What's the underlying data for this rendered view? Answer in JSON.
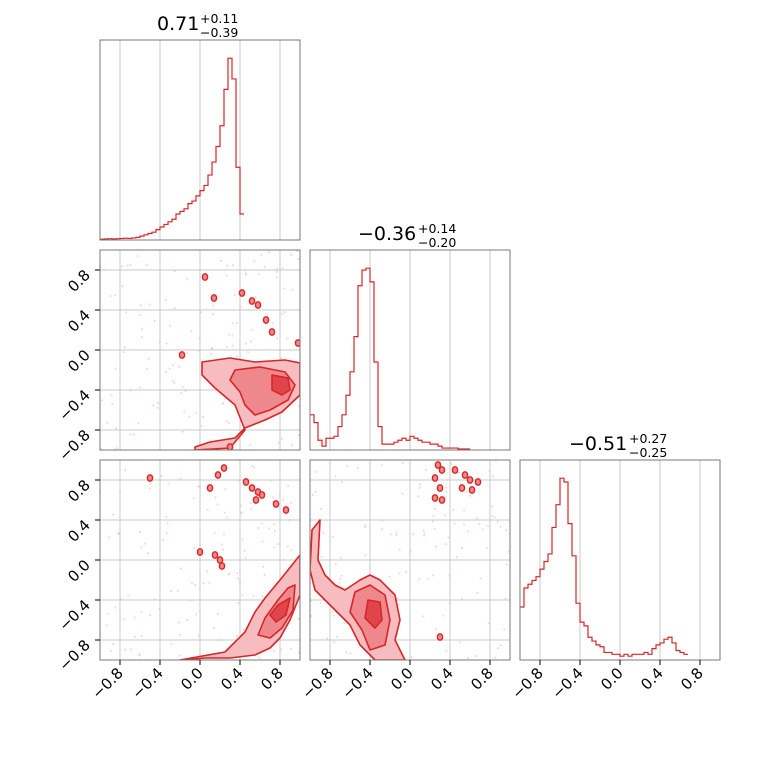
{
  "chart_data": {
    "type": "corner",
    "parameters": 3,
    "color": "#d62728",
    "fill_colors": [
      "#f6bcbf",
      "#ef888d",
      "#e0454c"
    ],
    "grid": true,
    "axis_range": [
      -1.0,
      1.0
    ],
    "tick_values": [
      -0.8,
      -0.4,
      0.0,
      0.4,
      0.8
    ],
    "tick_labels": [
      "−0.8",
      "−0.4",
      "0.0",
      "0.4",
      "0.8"
    ],
    "titles": [
      {
        "value": "0.71",
        "plus": "+0.11",
        "minus": "−0.39"
      },
      {
        "value": "−0.36",
        "plus": "+0.14",
        "minus": "−0.20"
      },
      {
        "value": "−0.51",
        "plus": "+0.27",
        "minus": "−0.25"
      }
    ],
    "histograms": [
      {
        "param": 1,
        "bin_start": -1.0,
        "bin_width": 0.04,
        "values": [
          0.3,
          0.4,
          0.5,
          0.4,
          0.5,
          0.6,
          0.7,
          0.6,
          0.8,
          1,
          1.5,
          2,
          2.5,
          3,
          4,
          5,
          6,
          7,
          8,
          10,
          11,
          12,
          14,
          15,
          17,
          19,
          21,
          25,
          30,
          36,
          44,
          58,
          70,
          62,
          28,
          10
        ]
      },
      {
        "param": 2,
        "bin_start": -1.0,
        "bin_width": 0.04,
        "values": [
          18,
          14,
          5,
          2,
          6,
          6,
          7,
          12,
          18,
          28,
          40,
          58,
          84,
          92,
          93,
          86,
          45,
          12,
          3,
          3,
          3,
          4,
          5,
          6,
          5,
          7,
          6,
          5,
          4,
          4,
          3,
          3,
          2,
          1,
          1,
          1,
          1,
          0.5,
          0.5,
          0.5
        ]
      },
      {
        "param": 3,
        "bin_start": -1.0,
        "bin_width": 0.04,
        "values": [
          28,
          38,
          40,
          42,
          44,
          48,
          52,
          56,
          70,
          82,
          96,
          94,
          72,
          55,
          30,
          20,
          18,
          12,
          10,
          8,
          7,
          4,
          4,
          3,
          3,
          2,
          3,
          2,
          3,
          3,
          3,
          4,
          3,
          6,
          8,
          9,
          11,
          12,
          9,
          5,
          4,
          3
        ]
      }
    ],
    "contours_2d": [
      {
        "x_param": 1,
        "y_param": 2,
        "levels": [
          {
            "level": 1,
            "points": [
              [
                0.02,
                -0.12
              ],
              [
                0.3,
                -0.08
              ],
              [
                0.55,
                -0.12
              ],
              [
                0.85,
                -0.1
              ],
              [
                1.0,
                -0.13
              ],
              [
                1.0,
                -0.45
              ],
              [
                0.82,
                -0.62
              ],
              [
                0.65,
                -0.7
              ],
              [
                0.45,
                -0.78
              ],
              [
                0.35,
                -0.88
              ],
              [
                0.1,
                -0.92
              ],
              [
                -0.05,
                -0.97
              ],
              [
                -0.05,
                -1.0
              ],
              [
                0.3,
                -0.98
              ],
              [
                0.45,
                -0.8
              ],
              [
                0.35,
                -0.55
              ],
              [
                0.15,
                -0.38
              ],
              [
                0.02,
                -0.25
              ]
            ]
          },
          {
            "level": 2,
            "points": [
              [
                0.35,
                -0.2
              ],
              [
                0.6,
                -0.17
              ],
              [
                0.85,
                -0.22
              ],
              [
                0.95,
                -0.35
              ],
              [
                0.88,
                -0.5
              ],
              [
                0.7,
                -0.6
              ],
              [
                0.55,
                -0.65
              ],
              [
                0.45,
                -0.55
              ],
              [
                0.4,
                -0.42
              ],
              [
                0.3,
                -0.3
              ]
            ]
          },
          {
            "level": 3,
            "points": [
              [
                0.72,
                -0.25
              ],
              [
                0.88,
                -0.28
              ],
              [
                0.9,
                -0.4
              ],
              [
                0.82,
                -0.45
              ],
              [
                0.72,
                -0.4
              ]
            ]
          }
        ],
        "islands": [
          [
            0.05,
            0.73
          ],
          [
            0.14,
            0.52
          ],
          [
            0.42,
            0.57
          ],
          [
            0.52,
            0.49
          ],
          [
            0.58,
            0.45
          ],
          [
            0.66,
            0.3
          ],
          [
            0.72,
            0.18
          ],
          [
            -0.18,
            -0.05
          ],
          [
            0.98,
            0.07
          ],
          [
            0.3,
            -0.97
          ]
        ]
      },
      {
        "x_param": 1,
        "y_param": 3,
        "levels": [
          {
            "level": 1,
            "points": [
              [
                1.0,
                0.05
              ],
              [
                1.0,
                -0.35
              ],
              [
                0.9,
                -0.6
              ],
              [
                0.8,
                -0.78
              ],
              [
                0.7,
                -0.88
              ],
              [
                0.55,
                -0.95
              ],
              [
                0.3,
                -0.98
              ],
              [
                0.05,
                -0.98
              ],
              [
                -0.15,
                -1.0
              ],
              [
                -0.2,
                -1.0
              ],
              [
                0.25,
                -0.92
              ],
              [
                0.45,
                -0.72
              ],
              [
                0.55,
                -0.52
              ],
              [
                0.65,
                -0.38
              ],
              [
                0.8,
                -0.2
              ],
              [
                0.92,
                -0.05
              ]
            ]
          },
          {
            "level": 2,
            "points": [
              [
                0.95,
                -0.25
              ],
              [
                0.93,
                -0.5
              ],
              [
                0.82,
                -0.68
              ],
              [
                0.7,
                -0.78
              ],
              [
                0.58,
                -0.75
              ],
              [
                0.65,
                -0.58
              ],
              [
                0.78,
                -0.4
              ],
              [
                0.88,
                -0.28
              ]
            ]
          },
          {
            "level": 3,
            "points": [
              [
                0.9,
                -0.38
              ],
              [
                0.86,
                -0.55
              ],
              [
                0.76,
                -0.62
              ],
              [
                0.7,
                -0.55
              ],
              [
                0.78,
                -0.45
              ]
            ]
          }
        ],
        "islands": [
          [
            -0.5,
            0.82
          ],
          [
            0.18,
            0.85
          ],
          [
            0.24,
            0.92
          ],
          [
            0.1,
            0.72
          ],
          [
            0.46,
            0.78
          ],
          [
            0.52,
            0.72
          ],
          [
            0.58,
            0.68
          ],
          [
            0.62,
            0.65
          ],
          [
            0.56,
            0.6
          ],
          [
            0.76,
            0.56
          ],
          [
            0.86,
            0.5
          ],
          [
            0.0,
            0.08
          ],
          [
            0.15,
            0.05
          ],
          [
            0.2,
            0.0
          ],
          [
            0.22,
            -0.06
          ]
        ]
      },
      {
        "x_param": 2,
        "y_param": 3,
        "levels": [
          {
            "level": 1,
            "points": [
              [
                -0.98,
                0.3
              ],
              [
                -0.9,
                0.4
              ],
              [
                -0.92,
                0.0
              ],
              [
                -0.85,
                -0.15
              ],
              [
                -0.75,
                -0.25
              ],
              [
                -0.65,
                -0.3
              ],
              [
                -0.5,
                -0.2
              ],
              [
                -0.4,
                -0.15
              ],
              [
                -0.3,
                -0.2
              ],
              [
                -0.15,
                -0.35
              ],
              [
                -0.1,
                -0.6
              ],
              [
                -0.15,
                -0.8
              ],
              [
                -0.05,
                -1.0
              ],
              [
                -0.35,
                -1.0
              ],
              [
                -0.5,
                -0.85
              ],
              [
                -0.6,
                -0.65
              ],
              [
                -0.8,
                -0.45
              ],
              [
                -0.95,
                -0.3
              ],
              [
                -1.0,
                -0.1
              ]
            ]
          },
          {
            "level": 2,
            "points": [
              [
                -0.55,
                -0.32
              ],
              [
                -0.4,
                -0.25
              ],
              [
                -0.25,
                -0.35
              ],
              [
                -0.2,
                -0.6
              ],
              [
                -0.25,
                -0.85
              ],
              [
                -0.4,
                -0.9
              ],
              [
                -0.48,
                -0.7
              ],
              [
                -0.6,
                -0.52
              ]
            ]
          },
          {
            "level": 3,
            "points": [
              [
                -0.42,
                -0.4
              ],
              [
                -0.3,
                -0.42
              ],
              [
                -0.28,
                -0.6
              ],
              [
                -0.35,
                -0.68
              ],
              [
                -0.45,
                -0.58
              ]
            ]
          }
        ],
        "islands": [
          [
            0.28,
            0.95
          ],
          [
            0.32,
            0.9
          ],
          [
            0.25,
            0.82
          ],
          [
            0.3,
            0.72
          ],
          [
            0.45,
            0.9
          ],
          [
            0.55,
            0.85
          ],
          [
            0.6,
            0.8
          ],
          [
            0.68,
            0.78
          ],
          [
            0.52,
            0.72
          ],
          [
            0.62,
            0.7
          ],
          [
            0.25,
            0.62
          ],
          [
            0.32,
            0.6
          ],
          [
            0.3,
            -0.77
          ]
        ]
      }
    ]
  }
}
